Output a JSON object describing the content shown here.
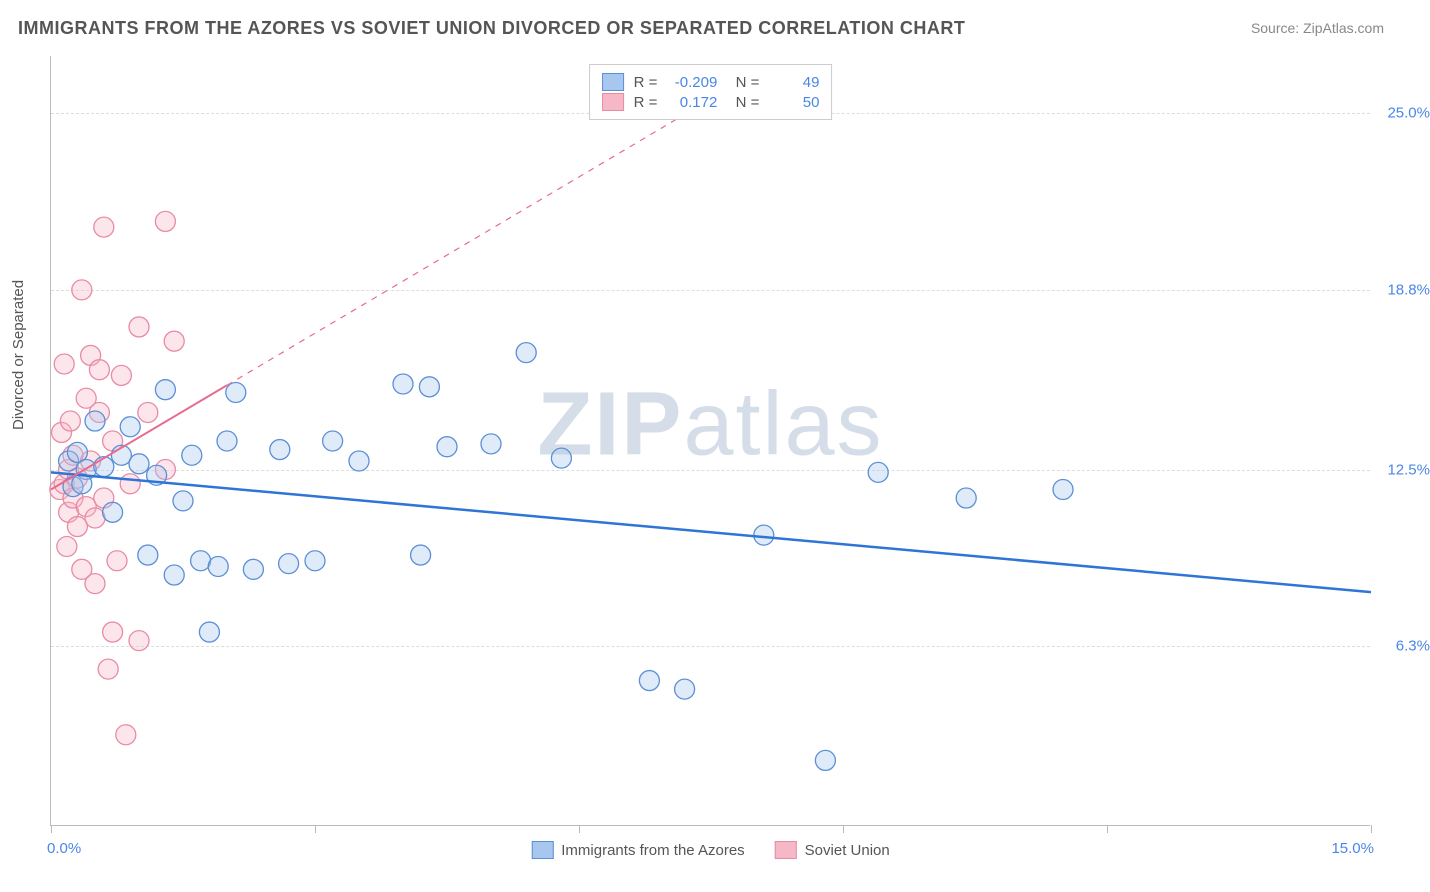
{
  "title": "IMMIGRANTS FROM THE AZORES VS SOVIET UNION DIVORCED OR SEPARATED CORRELATION CHART",
  "source": "Source: ZipAtlas.com",
  "y_axis_label": "Divorced or Separated",
  "watermark": {
    "bold": "ZIP",
    "light": "atlas"
  },
  "chart": {
    "type": "scatter",
    "xlim": [
      0,
      15
    ],
    "ylim": [
      0,
      27
    ],
    "x_ticks": [
      0,
      3,
      6,
      9,
      12,
      15
    ],
    "x_tick_labels_shown": {
      "min": "0.0%",
      "max": "15.0%"
    },
    "y_gridlines": [
      6.3,
      12.5,
      18.8,
      25.0
    ],
    "y_tick_labels": [
      "6.3%",
      "12.5%",
      "18.8%",
      "25.0%"
    ],
    "grid_color": "#dddddd",
    "axis_color": "#bbbbbb",
    "background_color": "#ffffff",
    "marker_radius": 10,
    "marker_opacity": 0.35,
    "series": [
      {
        "name": "Immigrants from the Azores",
        "fill": "#a7c7ef",
        "stroke": "#5b8fd6",
        "R": "-0.209",
        "N": "49",
        "trend": {
          "x1": 0,
          "y1": 12.4,
          "x2": 15,
          "y2": 8.2,
          "solid_until_x": 15,
          "stroke": "#2e75d6",
          "width": 2.5
        },
        "points": [
          [
            0.2,
            12.8
          ],
          [
            0.3,
            13.1
          ],
          [
            0.25,
            11.9
          ],
          [
            0.4,
            12.5
          ],
          [
            0.35,
            12.0
          ],
          [
            0.5,
            14.2
          ],
          [
            0.6,
            12.6
          ],
          [
            0.7,
            11.0
          ],
          [
            0.8,
            13.0
          ],
          [
            0.9,
            14.0
          ],
          [
            1.0,
            12.7
          ],
          [
            1.1,
            9.5
          ],
          [
            1.2,
            12.3
          ],
          [
            1.3,
            15.3
          ],
          [
            1.4,
            8.8
          ],
          [
            1.5,
            11.4
          ],
          [
            1.6,
            13.0
          ],
          [
            1.7,
            9.3
          ],
          [
            1.8,
            6.8
          ],
          [
            1.9,
            9.1
          ],
          [
            2.0,
            13.5
          ],
          [
            2.1,
            15.2
          ],
          [
            2.3,
            9.0
          ],
          [
            2.6,
            13.2
          ],
          [
            2.7,
            9.2
          ],
          [
            3.0,
            9.3
          ],
          [
            3.2,
            13.5
          ],
          [
            3.5,
            12.8
          ],
          [
            4.0,
            15.5
          ],
          [
            4.2,
            9.5
          ],
          [
            4.3,
            15.4
          ],
          [
            4.5,
            13.3
          ],
          [
            5.0,
            13.4
          ],
          [
            5.4,
            16.6
          ],
          [
            5.8,
            12.9
          ],
          [
            6.8,
            5.1
          ],
          [
            7.2,
            4.8
          ],
          [
            8.1,
            10.2
          ],
          [
            8.8,
            2.3
          ],
          [
            9.4,
            12.4
          ],
          [
            10.4,
            11.5
          ],
          [
            11.5,
            11.8
          ]
        ]
      },
      {
        "name": "Soviet Union",
        "fill": "#f6b8c6",
        "stroke": "#e88ba5",
        "R": "0.172",
        "N": "50",
        "trend": {
          "x1": 0,
          "y1": 11.8,
          "x2": 7.5,
          "y2": 25.5,
          "solid_until_x": 2.0,
          "stroke": "#e86b8f",
          "width": 2
        },
        "points": [
          [
            0.1,
            11.8
          ],
          [
            0.15,
            12.0
          ],
          [
            0.2,
            12.5
          ],
          [
            0.2,
            11.0
          ],
          [
            0.25,
            11.5
          ],
          [
            0.25,
            13.0
          ],
          [
            0.3,
            10.5
          ],
          [
            0.3,
            12.2
          ],
          [
            0.35,
            18.8
          ],
          [
            0.35,
            9.0
          ],
          [
            0.4,
            15.0
          ],
          [
            0.4,
            11.2
          ],
          [
            0.45,
            16.5
          ],
          [
            0.45,
            12.8
          ],
          [
            0.5,
            8.5
          ],
          [
            0.5,
            10.8
          ],
          [
            0.55,
            16.0
          ],
          [
            0.55,
            14.5
          ],
          [
            0.6,
            21.0
          ],
          [
            0.6,
            11.5
          ],
          [
            0.65,
            5.5
          ],
          [
            0.7,
            6.8
          ],
          [
            0.7,
            13.5
          ],
          [
            0.75,
            9.3
          ],
          [
            0.8,
            15.8
          ],
          [
            0.85,
            3.2
          ],
          [
            0.9,
            12.0
          ],
          [
            1.0,
            17.5
          ],
          [
            1.0,
            6.5
          ],
          [
            1.1,
            14.5
          ],
          [
            1.3,
            21.2
          ],
          [
            1.3,
            12.5
          ],
          [
            1.4,
            17.0
          ],
          [
            0.15,
            16.2
          ],
          [
            0.12,
            13.8
          ],
          [
            0.18,
            9.8
          ],
          [
            0.22,
            14.2
          ]
        ]
      }
    ]
  },
  "legend_bottom": [
    {
      "label": "Immigrants from the Azores",
      "fill": "#a7c7ef",
      "stroke": "#5b8fd6"
    },
    {
      "label": "Soviet Union",
      "fill": "#f6b8c6",
      "stroke": "#e88ba5"
    }
  ]
}
